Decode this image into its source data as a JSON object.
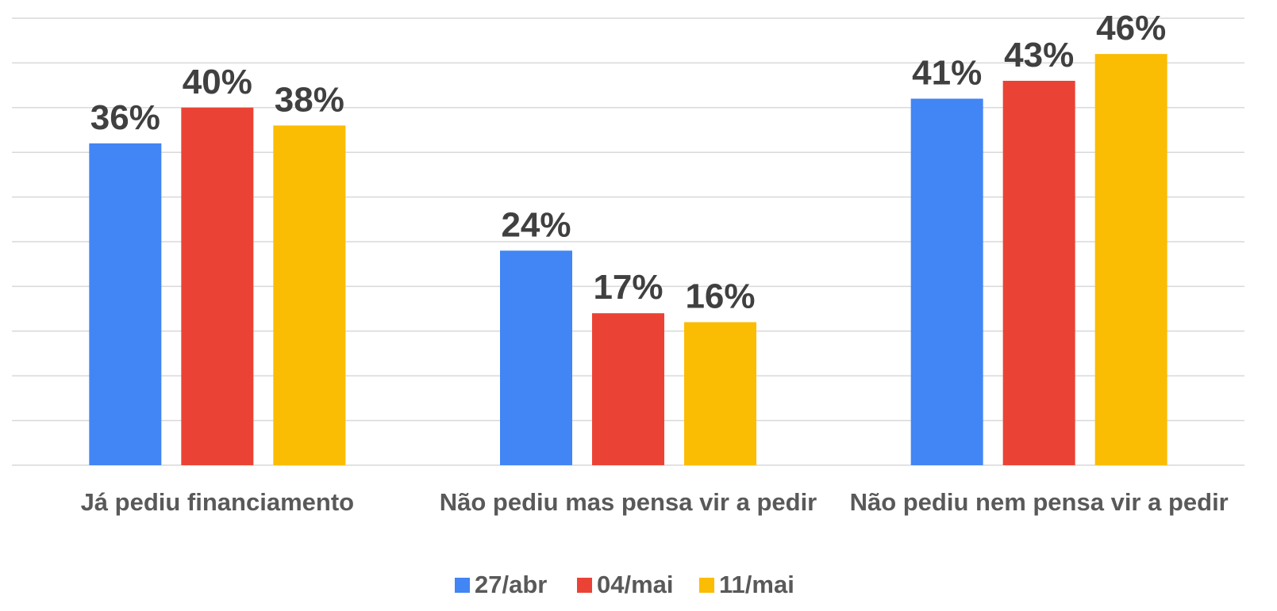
{
  "chart_data": {
    "type": "bar",
    "categories": [
      "Já pediu financiamento",
      "Não pediu mas pensa vir a pedir",
      "Não pediu nem pensa vir a pedir"
    ],
    "series": [
      {
        "name": "27/abr",
        "color": "#4285f4",
        "values": [
          36,
          24,
          41
        ],
        "value_labels": [
          "36%",
          "24%",
          "41%"
        ]
      },
      {
        "name": "04/mai",
        "color": "#ea4335",
        "values": [
          40,
          17,
          43
        ],
        "value_labels": [
          "40%",
          "17%",
          "43%"
        ]
      },
      {
        "name": "11/mai",
        "color": "#fbbc04",
        "values": [
          38,
          16,
          46
        ],
        "value_labels": [
          "38%",
          "16%",
          "46%"
        ]
      }
    ],
    "ylim": [
      0,
      50
    ],
    "yticks": [
      0,
      5,
      10,
      15,
      20,
      25,
      30,
      35,
      40,
      45,
      50
    ],
    "grid": true,
    "legend": "bottom"
  }
}
